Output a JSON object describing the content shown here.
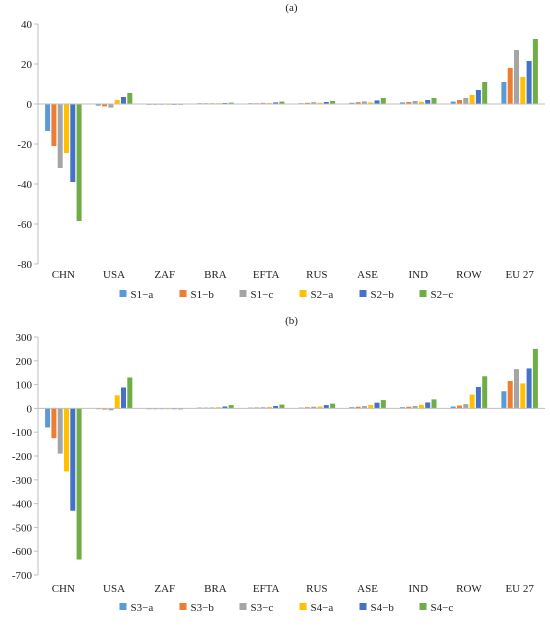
{
  "chart_data": [
    {
      "type": "bar",
      "title": "(a)",
      "categories": [
        "CHN",
        "USA",
        "ZAF",
        "BRA",
        "EFTA",
        "RUS",
        "ASE",
        "IND",
        "ROW",
        "EU 27"
      ],
      "ylim": [
        -80,
        40
      ],
      "yticks": [
        -80,
        -60,
        -40,
        -20,
        0,
        20,
        40
      ],
      "grid": false,
      "legend": "bottom",
      "series": [
        {
          "name": "S1−a",
          "color": "#5B9BD5",
          "values": [
            -13.5,
            -0.8,
            -0.2,
            0.2,
            0.3,
            0.4,
            0.6,
            0.8,
            1.2,
            11
          ]
        },
        {
          "name": "S1−b",
          "color": "#ED7D31",
          "values": [
            -21,
            -1.2,
            -0.2,
            0.3,
            0.4,
            0.6,
            0.9,
            1.0,
            2.0,
            18
          ]
        },
        {
          "name": "S1−c",
          "color": "#A5A5A5",
          "values": [
            -32,
            -1.8,
            -0.4,
            0.4,
            0.6,
            0.9,
            1.3,
            1.5,
            3.0,
            27
          ]
        },
        {
          "name": "S2−a",
          "color": "#FFC000",
          "values": [
            -24.5,
            2.0,
            -0.2,
            0.3,
            0.5,
            0.6,
            0.8,
            1.1,
            4.5,
            13.5
          ]
        },
        {
          "name": "S2−b",
          "color": "#4472C4",
          "values": [
            -39,
            3.5,
            -0.3,
            0.5,
            0.8,
            1.0,
            1.8,
            2.0,
            7.0,
            21.5
          ]
        },
        {
          "name": "S2−c",
          "color": "#70AD47",
          "values": [
            -58.5,
            5.5,
            -0.4,
            0.7,
            1.2,
            1.5,
            3.0,
            3.0,
            11,
            32.5
          ]
        }
      ]
    },
    {
      "type": "bar",
      "title": "(b)",
      "categories": [
        "CHN",
        "USA",
        "ZAF",
        "BRA",
        "EFTA",
        "RUS",
        "ASE",
        "IND",
        "ROW",
        "EU 27"
      ],
      "ylim": [
        -700,
        300
      ],
      "yticks": [
        -700,
        -600,
        -500,
        -400,
        -300,
        -200,
        -100,
        0,
        100,
        200,
        300
      ],
      "grid": false,
      "legend": "bottom",
      "series": [
        {
          "name": "S3−a",
          "color": "#5B9BD5",
          "values": [
            -80,
            -3,
            -1,
            2,
            3,
            3,
            5,
            5,
            8,
            72
          ]
        },
        {
          "name": "S3−b",
          "color": "#ED7D31",
          "values": [
            -125,
            -5,
            -2,
            3,
            4,
            5,
            7,
            7,
            12,
            115
          ]
        },
        {
          "name": "S3−c",
          "color": "#A5A5A5",
          "values": [
            -190,
            -8,
            -3,
            4,
            5,
            7,
            10,
            10,
            18,
            165
          ]
        },
        {
          "name": "S4−a",
          "color": "#FFC000",
          "values": [
            -265,
            55,
            -2,
            5,
            6,
            8,
            14,
            15,
            58,
            105
          ]
        },
        {
          "name": "S4−b",
          "color": "#4472C4",
          "values": [
            -430,
            88,
            -3,
            8,
            10,
            14,
            24,
            25,
            90,
            168
          ]
        },
        {
          "name": "S4−c",
          "color": "#70AD47",
          "values": [
            -635,
            130,
            -4,
            14,
            16,
            20,
            35,
            38,
            135,
            250
          ]
        }
      ]
    }
  ]
}
